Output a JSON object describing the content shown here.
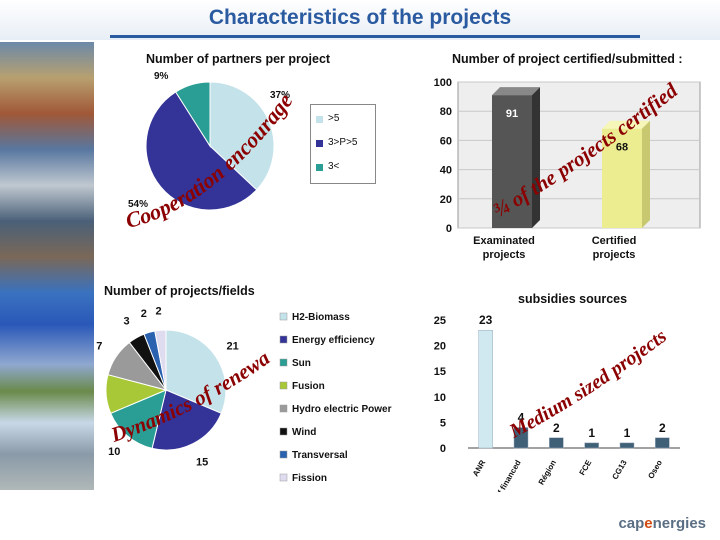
{
  "page": {
    "title": "Characteristics of the projects"
  },
  "colors": {
    "title": "#2a5aa0",
    "wordart": "#8b0000",
    "photo_strip": "#6b89a8"
  },
  "chart_data": [
    {
      "type": "pie",
      "title": "Number of partners per project",
      "slices": [
        {
          "label": ">5",
          "percent_label": "37%",
          "value": 37,
          "color": "#c4e2ea"
        },
        {
          "label": "3>P>5",
          "percent_label": "54%",
          "value": 54,
          "color": "#343498"
        },
        {
          "label": "3<",
          "percent_label": "9%",
          "value": 9,
          "color": "#2a9e94"
        }
      ],
      "legend": [
        ">5",
        "3>P>5",
        "3<"
      ],
      "legend_position": "right",
      "overlay_text": "Cooperation encouraged"
    },
    {
      "type": "bar",
      "title": "Number of project certified/submitted :",
      "categories": [
        "Examinated projects",
        "Certified projects"
      ],
      "values": [
        91,
        68
      ],
      "value_labels": [
        "91",
        "68"
      ],
      "ylim": [
        0,
        100
      ],
      "yticks": [
        "0",
        "20",
        "40",
        "60",
        "80",
        "100"
      ],
      "grid": true,
      "colors": [
        "#555555",
        "#ecec90"
      ],
      "overlay_text": "¾ of the projects certified"
    },
    {
      "type": "pie",
      "title": "Number of projects/fields",
      "slices": [
        {
          "label": "H2-Biomass",
          "value": 21,
          "value_label": "21",
          "color": "#c4e2ea"
        },
        {
          "label": "Energy efficiency",
          "value": 15,
          "value_label": "15",
          "color": "#343498"
        },
        {
          "label": "Sun",
          "value": 10,
          "value_label": "10",
          "color": "#2a9e94"
        },
        {
          "label": "Fusion",
          "value": 7,
          "value_label": "7",
          "color": "#a8c838"
        },
        {
          "label": "Hydro electric Power",
          "value": 7,
          "value_label": "7",
          "color": "#9a9a9a"
        },
        {
          "label": "Wind",
          "value": 3,
          "value_label": "3",
          "color": "#111111"
        },
        {
          "label": "Transversal",
          "value": 2,
          "value_label": "2",
          "color": "#2a62b0"
        },
        {
          "label": "Fission",
          "value": 2,
          "value_label": "2",
          "color": "#e0dcf0"
        }
      ],
      "legend_position": "right",
      "overlay_text": "Dynamics of renewable energies"
    },
    {
      "type": "bar",
      "title": "subsidies sources",
      "categories": [
        "ANR",
        "Self financed",
        "Région",
        "FCE",
        "CG13",
        "Oseo"
      ],
      "values": [
        23,
        4,
        2,
        1,
        1,
        2
      ],
      "value_labels": [
        "23",
        "4",
        "2",
        "1",
        "1",
        "2"
      ],
      "ylim": [
        0,
        25
      ],
      "yticks": [
        "0",
        "5",
        "10",
        "15",
        "20",
        "25"
      ],
      "colors": [
        "#d0e8f0",
        "#406078",
        "#406078",
        "#406078",
        "#406078",
        "#406078"
      ],
      "overlay_text": "Medium sized projects"
    }
  ],
  "footer": {
    "logo_pre": "cap",
    "logo_e": "e",
    "logo_post": "nergies"
  }
}
